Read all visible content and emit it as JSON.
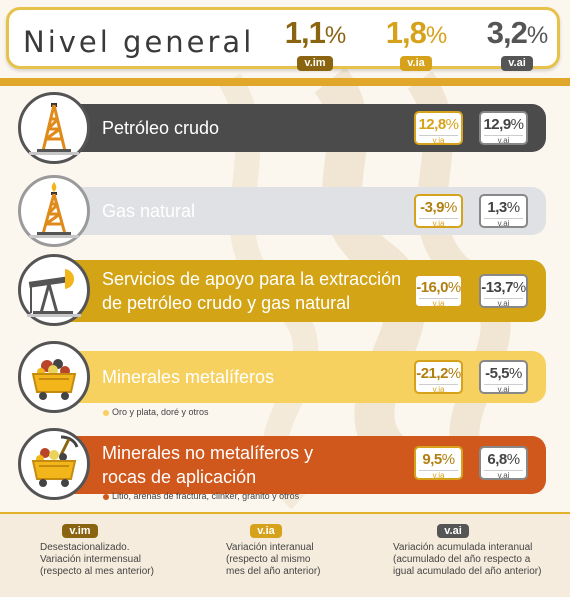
{
  "header": {
    "title": "Nivel general",
    "stats": [
      {
        "value": "1,1",
        "unit": "%",
        "tag": "v.im",
        "color": "#8a6410"
      },
      {
        "value": "1,8",
        "unit": "%",
        "tag": "v.ia",
        "color": "#d6a21c"
      },
      {
        "value": "3,2",
        "unit": "%",
        "tag": "v.ai",
        "color": "#555555"
      }
    ]
  },
  "rows": [
    {
      "label_line1": "Petróleo crudo",
      "label_line2": "",
      "ia_value": "12,8",
      "ai_value": "12,9",
      "unit": "%",
      "ia_tag": "v.ia",
      "ai_tag": "v.ai",
      "note": "",
      "icon": "oil-rig-icon",
      "bar_color": "#4b4b4b"
    },
    {
      "label_line1": "Gas natural",
      "label_line2": "",
      "ia_value": "-3,9",
      "ai_value": "1,3",
      "unit": "%",
      "ia_tag": "v.ia",
      "ai_tag": "v.ai",
      "note": "",
      "icon": "gas-rig-icon",
      "bar_color": "#dfe1e4"
    },
    {
      "label_line1": "Servicios de apoyo para la extracción",
      "label_line2": "de petróleo crudo y gas natural",
      "ia_value": "-16,0",
      "ai_value": "-13,7",
      "unit": "%",
      "ia_tag": "v.ia",
      "ai_tag": "v.ai",
      "note": "",
      "icon": "pump-jack-icon",
      "bar_color": "#d3a516"
    },
    {
      "label_line1": "Minerales metalíferos",
      "label_line2": "",
      "ia_value": "-21,2",
      "ai_value": "-5,5",
      "unit": "%",
      "ia_tag": "v.ia",
      "ai_tag": "v.ai",
      "note": "Oro y plata, doré y otros",
      "icon": "mine-cart-icon",
      "bar_color": "#f6d15f"
    },
    {
      "label_line1": "Minerales no metalíferos y",
      "label_line2": "rocas de aplicación",
      "ia_value": "9,5",
      "ai_value": "6,8",
      "unit": "%",
      "ia_tag": "v.ia",
      "ai_tag": "v.ai",
      "note": "Litio, arenas de fractura, clinker, granito y otros",
      "icon": "mine-cart-pickaxe-icon",
      "bar_color": "#d0581c"
    }
  ],
  "footer": [
    {
      "tag": "v.im",
      "color": "#8a6410",
      "line1": "Desestacionalizado.",
      "line2": "Variación intermensual",
      "line3": "(respecto al mes anterior)"
    },
    {
      "tag": "v.ia",
      "color": "#d6a21c",
      "line1": "Variación interanual",
      "line2": "(respecto al mismo",
      "line3": "mes del año anterior)"
    },
    {
      "tag": "v.ai",
      "color": "#555555",
      "line1": "Variación acumulada interanual",
      "line2": "(acumulado del año respecto a",
      "line3": "igual acumulado del año anterior)"
    }
  ]
}
